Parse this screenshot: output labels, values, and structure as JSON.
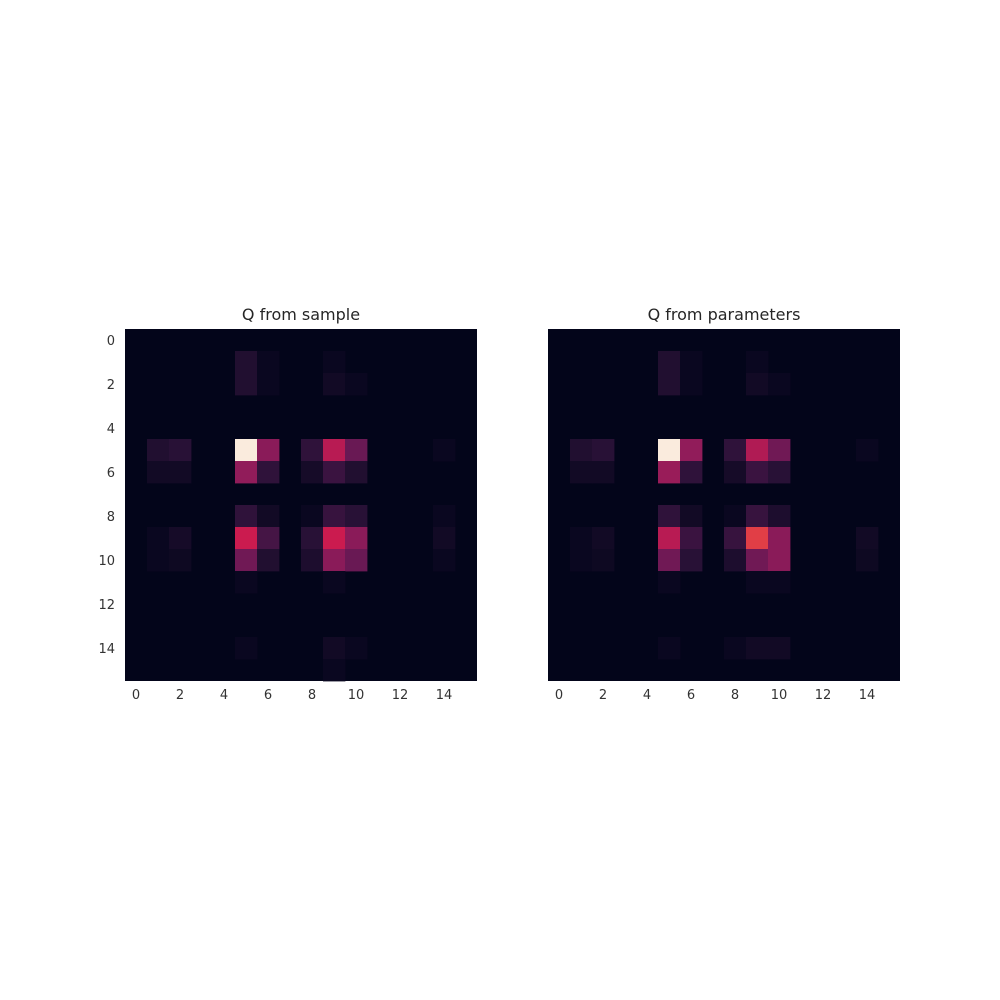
{
  "chart_data": [
    {
      "type": "heatmap",
      "title": "Q from sample",
      "colormap": "rocket",
      "value_range": [
        0,
        1
      ],
      "x_ticks": [
        "0",
        "2",
        "4",
        "6",
        "8",
        "10",
        "12",
        "14"
      ],
      "y_ticks": [
        "0",
        "2",
        "4",
        "6",
        "8",
        "10",
        "12",
        "14"
      ],
      "rows": 16,
      "cols": 16,
      "cells": [
        {
          "r": 1,
          "c": 5,
          "v": 0.08
        },
        {
          "r": 1,
          "c": 6,
          "v": 0.02
        },
        {
          "r": 1,
          "c": 9,
          "v": 0.02
        },
        {
          "r": 2,
          "c": 5,
          "v": 0.08
        },
        {
          "r": 2,
          "c": 6,
          "v": 0.02
        },
        {
          "r": 2,
          "c": 9,
          "v": 0.04
        },
        {
          "r": 2,
          "c": 10,
          "v": 0.02
        },
        {
          "r": 5,
          "c": 1,
          "v": 0.08
        },
        {
          "r": 5,
          "c": 2,
          "v": 0.1
        },
        {
          "r": 5,
          "c": 5,
          "v": 1.0
        },
        {
          "r": 5,
          "c": 6,
          "v": 0.38
        },
        {
          "r": 5,
          "c": 8,
          "v": 0.12
        },
        {
          "r": 5,
          "c": 9,
          "v": 0.5
        },
        {
          "r": 5,
          "c": 10,
          "v": 0.28
        },
        {
          "r": 5,
          "c": 14,
          "v": 0.02
        },
        {
          "r": 6,
          "c": 1,
          "v": 0.04
        },
        {
          "r": 6,
          "c": 2,
          "v": 0.04
        },
        {
          "r": 6,
          "c": 5,
          "v": 0.4
        },
        {
          "r": 6,
          "c": 6,
          "v": 0.12
        },
        {
          "r": 6,
          "c": 8,
          "v": 0.05
        },
        {
          "r": 6,
          "c": 9,
          "v": 0.15
        },
        {
          "r": 6,
          "c": 10,
          "v": 0.08
        },
        {
          "r": 8,
          "c": 5,
          "v": 0.12
        },
        {
          "r": 8,
          "c": 6,
          "v": 0.04
        },
        {
          "r": 8,
          "c": 8,
          "v": 0.02
        },
        {
          "r": 8,
          "c": 9,
          "v": 0.14
        },
        {
          "r": 8,
          "c": 10,
          "v": 0.1
        },
        {
          "r": 8,
          "c": 14,
          "v": 0.02
        },
        {
          "r": 9,
          "c": 1,
          "v": 0.02
        },
        {
          "r": 9,
          "c": 2,
          "v": 0.05
        },
        {
          "r": 9,
          "c": 5,
          "v": 0.55
        },
        {
          "r": 9,
          "c": 6,
          "v": 0.18
        },
        {
          "r": 9,
          "c": 8,
          "v": 0.1
        },
        {
          "r": 9,
          "c": 9,
          "v": 0.55
        },
        {
          "r": 9,
          "c": 10,
          "v": 0.38
        },
        {
          "r": 9,
          "c": 14,
          "v": 0.04
        },
        {
          "r": 10,
          "c": 1,
          "v": 0.02
        },
        {
          "r": 10,
          "c": 2,
          "v": 0.03
        },
        {
          "r": 10,
          "c": 5,
          "v": 0.3
        },
        {
          "r": 10,
          "c": 6,
          "v": 0.08
        },
        {
          "r": 10,
          "c": 8,
          "v": 0.07
        },
        {
          "r": 10,
          "c": 9,
          "v": 0.38
        },
        {
          "r": 10,
          "c": 10,
          "v": 0.28
        },
        {
          "r": 10,
          "c": 14,
          "v": 0.02
        },
        {
          "r": 11,
          "c": 5,
          "v": 0.02
        },
        {
          "r": 11,
          "c": 9,
          "v": 0.02
        },
        {
          "r": 14,
          "c": 5,
          "v": 0.02
        },
        {
          "r": 14,
          "c": 9,
          "v": 0.04
        },
        {
          "r": 14,
          "c": 10,
          "v": 0.02
        },
        {
          "r": 15,
          "c": 9,
          "v": 0.02
        }
      ]
    },
    {
      "type": "heatmap",
      "title": "Q from parameters",
      "colormap": "rocket",
      "value_range": [
        0,
        1
      ],
      "x_ticks": [
        "0",
        "2",
        "4",
        "6",
        "8",
        "10",
        "12",
        "14"
      ],
      "y_ticks": [],
      "rows": 16,
      "cols": 16,
      "cells": [
        {
          "r": 1,
          "c": 5,
          "v": 0.08
        },
        {
          "r": 1,
          "c": 6,
          "v": 0.02
        },
        {
          "r": 1,
          "c": 9,
          "v": 0.02
        },
        {
          "r": 2,
          "c": 5,
          "v": 0.08
        },
        {
          "r": 2,
          "c": 6,
          "v": 0.02
        },
        {
          "r": 2,
          "c": 9,
          "v": 0.04
        },
        {
          "r": 2,
          "c": 10,
          "v": 0.02
        },
        {
          "r": 5,
          "c": 1,
          "v": 0.08
        },
        {
          "r": 5,
          "c": 2,
          "v": 0.1
        },
        {
          "r": 5,
          "c": 5,
          "v": 1.0
        },
        {
          "r": 5,
          "c": 6,
          "v": 0.4
        },
        {
          "r": 5,
          "c": 8,
          "v": 0.12
        },
        {
          "r": 5,
          "c": 9,
          "v": 0.48
        },
        {
          "r": 5,
          "c": 10,
          "v": 0.3
        },
        {
          "r": 5,
          "c": 14,
          "v": 0.02
        },
        {
          "r": 6,
          "c": 1,
          "v": 0.04
        },
        {
          "r": 6,
          "c": 2,
          "v": 0.04
        },
        {
          "r": 6,
          "c": 5,
          "v": 0.42
        },
        {
          "r": 6,
          "c": 6,
          "v": 0.12
        },
        {
          "r": 6,
          "c": 8,
          "v": 0.05
        },
        {
          "r": 6,
          "c": 9,
          "v": 0.15
        },
        {
          "r": 6,
          "c": 10,
          "v": 0.1
        },
        {
          "r": 8,
          "c": 5,
          "v": 0.12
        },
        {
          "r": 8,
          "c": 6,
          "v": 0.04
        },
        {
          "r": 8,
          "c": 8,
          "v": 0.02
        },
        {
          "r": 8,
          "c": 9,
          "v": 0.14
        },
        {
          "r": 8,
          "c": 10,
          "v": 0.07
        },
        {
          "r": 9,
          "c": 1,
          "v": 0.02
        },
        {
          "r": 9,
          "c": 2,
          "v": 0.04
        },
        {
          "r": 9,
          "c": 5,
          "v": 0.5
        },
        {
          "r": 9,
          "c": 6,
          "v": 0.15
        },
        {
          "r": 9,
          "c": 8,
          "v": 0.14
        },
        {
          "r": 9,
          "c": 9,
          "v": 0.65
        },
        {
          "r": 9,
          "c": 10,
          "v": 0.38
        },
        {
          "r": 9,
          "c": 14,
          "v": 0.04
        },
        {
          "r": 10,
          "c": 1,
          "v": 0.02
        },
        {
          "r": 10,
          "c": 2,
          "v": 0.03
        },
        {
          "r": 10,
          "c": 5,
          "v": 0.3
        },
        {
          "r": 10,
          "c": 6,
          "v": 0.1
        },
        {
          "r": 10,
          "c": 8,
          "v": 0.07
        },
        {
          "r": 10,
          "c": 9,
          "v": 0.3
        },
        {
          "r": 10,
          "c": 10,
          "v": 0.38
        },
        {
          "r": 10,
          "c": 14,
          "v": 0.03
        },
        {
          "r": 11,
          "c": 5,
          "v": 0.02
        },
        {
          "r": 11,
          "c": 9,
          "v": 0.02
        },
        {
          "r": 11,
          "c": 10,
          "v": 0.02
        },
        {
          "r": 14,
          "c": 5,
          "v": 0.02
        },
        {
          "r": 14,
          "c": 8,
          "v": 0.02
        },
        {
          "r": 14,
          "c": 9,
          "v": 0.04
        },
        {
          "r": 14,
          "c": 10,
          "v": 0.04
        }
      ]
    }
  ]
}
